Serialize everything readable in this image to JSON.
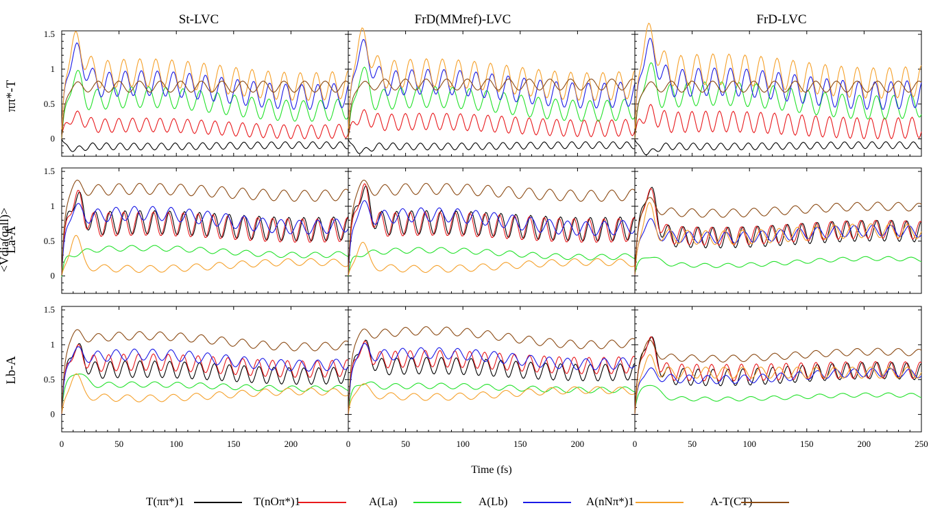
{
  "chart_data": {
    "type": "line",
    "column_titles": [
      "St-LVC",
      "FrD(MMref)-LVC",
      "FrD-LVC"
    ],
    "row_labels": [
      "ππ*-T",
      "La-A",
      "Lb-A"
    ],
    "shared_ylabel": "<Vdia(qall)>",
    "xlabel": "Time (fs)",
    "x_ticks": [
      "0",
      "50",
      "100",
      "150",
      "200"
    ],
    "x_ticks_last": [
      "0",
      "50",
      "100",
      "150",
      "200",
      "250"
    ],
    "y_ticks": [
      "1.5",
      "1",
      "0.5",
      "0"
    ],
    "xlim": [
      0,
      250
    ],
    "ylim": [
      -0.25,
      1.55
    ],
    "legend_placement": "bottom",
    "series": [
      {
        "name": "T(ππ*)1",
        "color": "#000000"
      },
      {
        "name": "T(nOπ*)1",
        "color": "#e8191c"
      },
      {
        "name": "A(La)",
        "color": "#22e12a"
      },
      {
        "name": "A(Lb)",
        "color": "#1a1ae6"
      },
      {
        "name": "A(nNπ*)1",
        "color": "#f5a02a"
      },
      {
        "name": "A-T(CT)",
        "color": "#8b4a13"
      }
    ],
    "curves": [
      [
        [
          [
            -0.15,
            0.6,
            -0.1,
            0.05,
            12,
            -0.01
          ],
          [
            0.3,
            1.0,
            0.15,
            0.1,
            12,
            0.05
          ],
          [
            0.9,
            0.4,
            0.5,
            0.15,
            15,
            0.1
          ],
          [
            1.2,
            1.0,
            0.7,
            0.18,
            14,
            0.1
          ],
          [
            1.35,
            0.9,
            0.85,
            0.2,
            14,
            0.1
          ],
          [
            0.75,
            0.2,
            0.75,
            0.08,
            18,
            0.0
          ]
        ],
        [
          [
            -0.18,
            0.6,
            -0.1,
            0.05,
            12,
            -0.01
          ],
          [
            0.3,
            1.0,
            0.2,
            0.12,
            12,
            0.05
          ],
          [
            0.95,
            0.4,
            0.5,
            0.15,
            15,
            0.1
          ],
          [
            1.25,
            1.0,
            0.72,
            0.18,
            14,
            0.1
          ],
          [
            1.4,
            0.9,
            0.85,
            0.2,
            14,
            0.1
          ],
          [
            0.75,
            0.2,
            0.78,
            0.08,
            18,
            0.0
          ]
        ],
        [
          [
            -0.2,
            0.6,
            -0.1,
            0.05,
            12,
            -0.01
          ],
          [
            0.35,
            1.0,
            0.2,
            0.15,
            12,
            0.05
          ],
          [
            1.0,
            0.4,
            0.55,
            0.17,
            15,
            0.1
          ],
          [
            1.25,
            1.0,
            0.72,
            0.2,
            14,
            0.1
          ],
          [
            1.45,
            0.9,
            0.9,
            0.22,
            14,
            0.1
          ],
          [
            0.75,
            0.2,
            0.75,
            0.08,
            18,
            0.0
          ]
        ]
      ],
      [
        [
          [
            1.1,
            0.7,
            0.72,
            0.17,
            13,
            0.05
          ],
          [
            1.1,
            0.7,
            0.7,
            0.17,
            13,
            0.05
          ],
          [
            0.3,
            0.9,
            0.35,
            0.04,
            20,
            0.05
          ],
          [
            0.95,
            0.4,
            0.8,
            0.1,
            16,
            0.1
          ],
          [
            0.6,
            0.4,
            0.15,
            0.05,
            20,
            -0.05
          ],
          [
            1.3,
            0.5,
            1.2,
            0.08,
            18,
            0.05
          ]
        ],
        [
          [
            1.2,
            0.7,
            0.72,
            0.17,
            13,
            0.05
          ],
          [
            1.2,
            0.7,
            0.7,
            0.17,
            13,
            0.05
          ],
          [
            0.3,
            0.9,
            0.32,
            0.04,
            20,
            0.05
          ],
          [
            1.0,
            0.4,
            0.78,
            0.1,
            16,
            0.1
          ],
          [
            0.5,
            0.4,
            0.15,
            0.05,
            20,
            -0.05
          ],
          [
            1.3,
            0.5,
            1.2,
            0.08,
            18,
            0.05
          ]
        ],
        [
          [
            1.25,
            0.7,
            0.6,
            0.15,
            13,
            -0.05
          ],
          [
            1.2,
            0.7,
            0.62,
            0.13,
            13,
            -0.05
          ],
          [
            0.3,
            0.9,
            0.2,
            0.03,
            20,
            -0.05
          ],
          [
            0.8,
            0.4,
            0.6,
            0.08,
            16,
            -0.05
          ],
          [
            1.0,
            0.4,
            0.6,
            0.1,
            16,
            -0.05
          ],
          [
            1.1,
            0.5,
            0.95,
            0.06,
            18,
            -0.05
          ]
        ]
      ],
      [
        [
          [
            0.95,
            0.7,
            0.6,
            0.12,
            13,
            0.05
          ],
          [
            0.9,
            0.7,
            0.7,
            0.12,
            13,
            0.05
          ],
          [
            0.6,
            0.9,
            0.4,
            0.04,
            20,
            0.03
          ],
          [
            0.9,
            0.4,
            0.78,
            0.08,
            16,
            0.08
          ],
          [
            0.6,
            0.4,
            0.28,
            0.05,
            20,
            -0.05
          ],
          [
            1.15,
            0.5,
            1.05,
            0.06,
            18,
            0.08
          ]
        ],
        [
          [
            1.0,
            0.7,
            0.65,
            0.12,
            13,
            0.05
          ],
          [
            0.95,
            0.7,
            0.75,
            0.12,
            13,
            0.05
          ],
          [
            0.45,
            0.9,
            0.38,
            0.04,
            20,
            0.03
          ],
          [
            0.95,
            0.4,
            0.8,
            0.08,
            16,
            0.08
          ],
          [
            0.45,
            0.4,
            0.3,
            0.05,
            20,
            -0.05
          ],
          [
            1.15,
            0.5,
            1.1,
            0.06,
            18,
            0.1
          ]
        ],
        [
          [
            1.1,
            0.7,
            0.58,
            0.12,
            13,
            -0.05
          ],
          [
            1.05,
            0.7,
            0.62,
            0.12,
            13,
            -0.02
          ],
          [
            0.45,
            0.9,
            0.25,
            0.03,
            20,
            -0.03
          ],
          [
            0.65,
            0.4,
            0.55,
            0.06,
            16,
            -0.05
          ],
          [
            0.8,
            0.4,
            0.6,
            0.08,
            16,
            0.0
          ],
          [
            1.05,
            0.5,
            0.85,
            0.05,
            18,
            -0.05
          ]
        ]
      ]
    ]
  }
}
